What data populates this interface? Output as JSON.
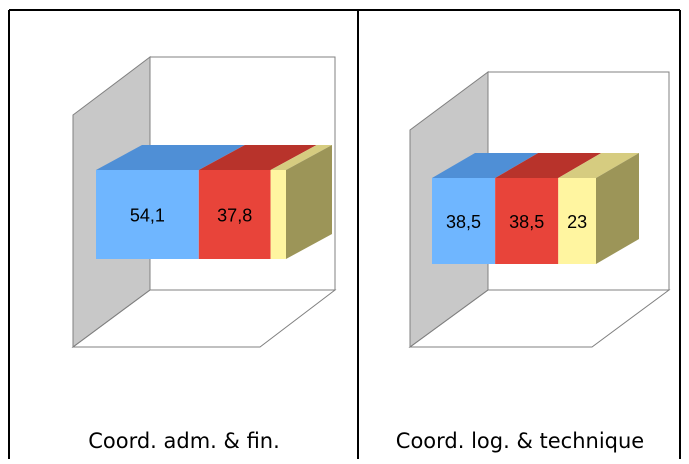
{
  "chart_data": [
    {
      "type": "bar",
      "stacked": true,
      "orientation": "horizontal",
      "style": "3d-stacked-100",
      "title": "Coord. adm. & fin.",
      "segments": [
        {
          "value": 54.1,
          "label": "54,1",
          "color": "#6FB6FF",
          "top_color": "#4F8FD6",
          "side_color": "#4F8FD6"
        },
        {
          "value": 37.8,
          "label": "37,8",
          "color": "#E8443A",
          "top_color": "#B8332B",
          "side_color": "#B8332B"
        },
        {
          "value": 8.1,
          "label": "",
          "color": "#FFF5A0",
          "top_color": "#D6CC80",
          "side_color": "#9C9558"
        }
      ],
      "grid": false,
      "legend": "none"
    },
    {
      "type": "bar",
      "stacked": true,
      "orientation": "horizontal",
      "style": "3d-stacked-100",
      "title": "Coord. log. & technique",
      "segments": [
        {
          "value": 38.5,
          "label": "38,5",
          "color": "#6FB6FF",
          "top_color": "#4F8FD6",
          "side_color": "#4F8FD6"
        },
        {
          "value": 38.5,
          "label": "38,5",
          "color": "#E8443A",
          "top_color": "#B8332B",
          "side_color": "#B8332B"
        },
        {
          "value": 23,
          "label": "23",
          "color": "#FFF5A0",
          "top_color": "#D6CC80",
          "side_color": "#9C9558"
        }
      ],
      "grid": false,
      "legend": "none"
    }
  ]
}
